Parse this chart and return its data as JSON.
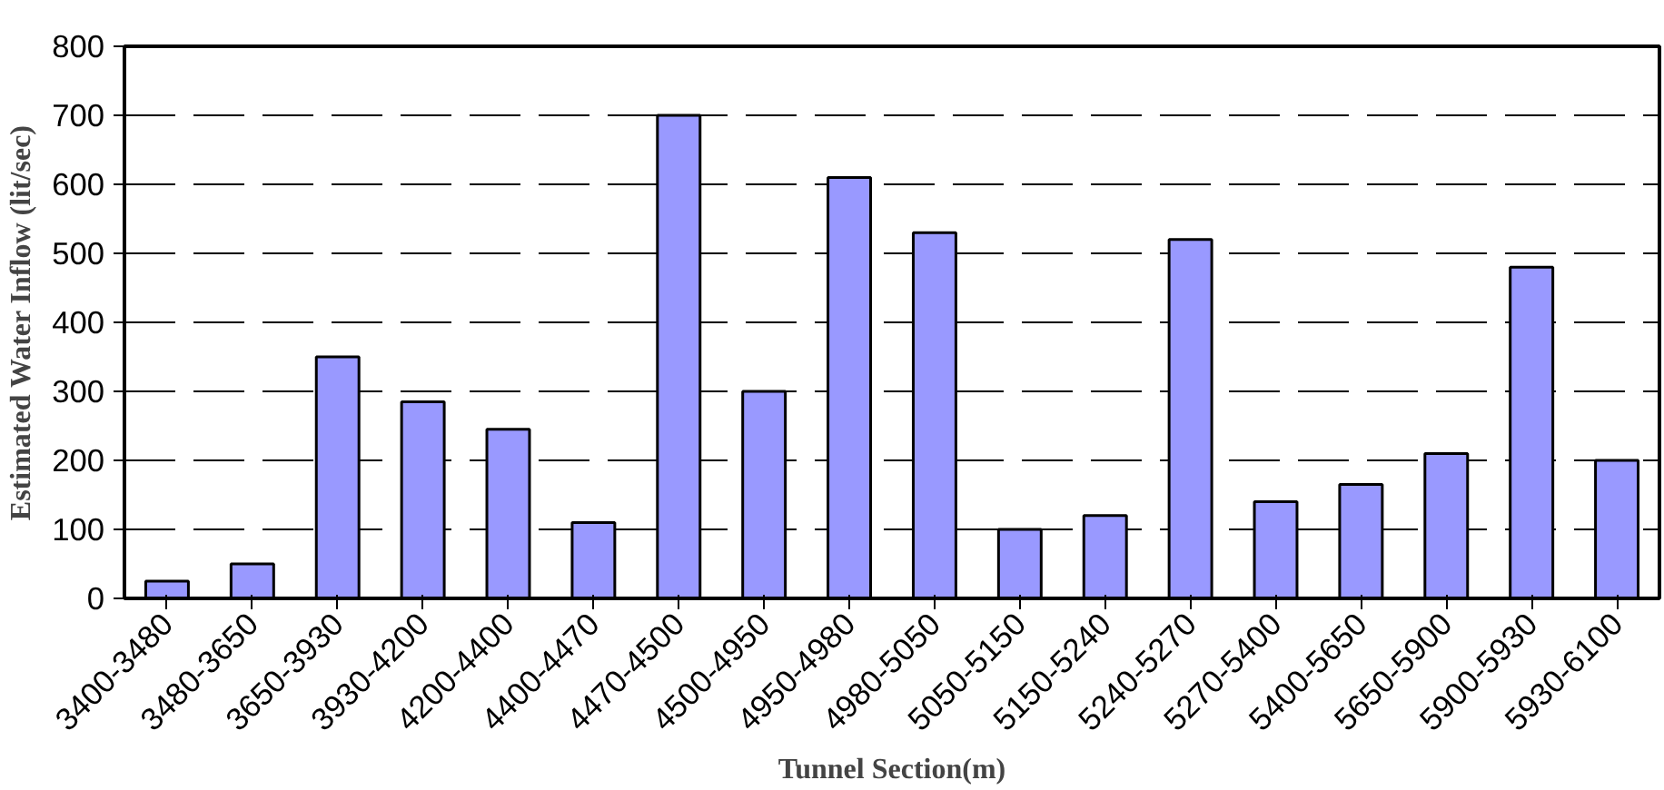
{
  "chart_data": {
    "type": "bar",
    "xlabel": "Tunnel Section(m)",
    "ylabel": "Estimated Water Inflow (lit/sec)",
    "categories": [
      "3400-3480",
      "3480-3650",
      "3650-3930",
      "3930-4200",
      "4200-4400",
      "4400-4470",
      "4470-4500",
      "4500-4950",
      "4950-4980",
      "4980-5050",
      "5050-5150",
      "5150-5240",
      "5240-5270",
      "5270-5400",
      "5400-5650",
      "5650-5900",
      "5900-5930",
      "5930-6100"
    ],
    "values": [
      25,
      50,
      350,
      285,
      245,
      110,
      700,
      300,
      610,
      530,
      100,
      120,
      520,
      140,
      165,
      210,
      480,
      200
    ],
    "color": "#9999ff",
    "ylim": [
      0,
      800
    ],
    "yticks": [
      0,
      100,
      200,
      300,
      400,
      500,
      600,
      700,
      800
    ],
    "grid": "y",
    "line_style": "dashed"
  }
}
